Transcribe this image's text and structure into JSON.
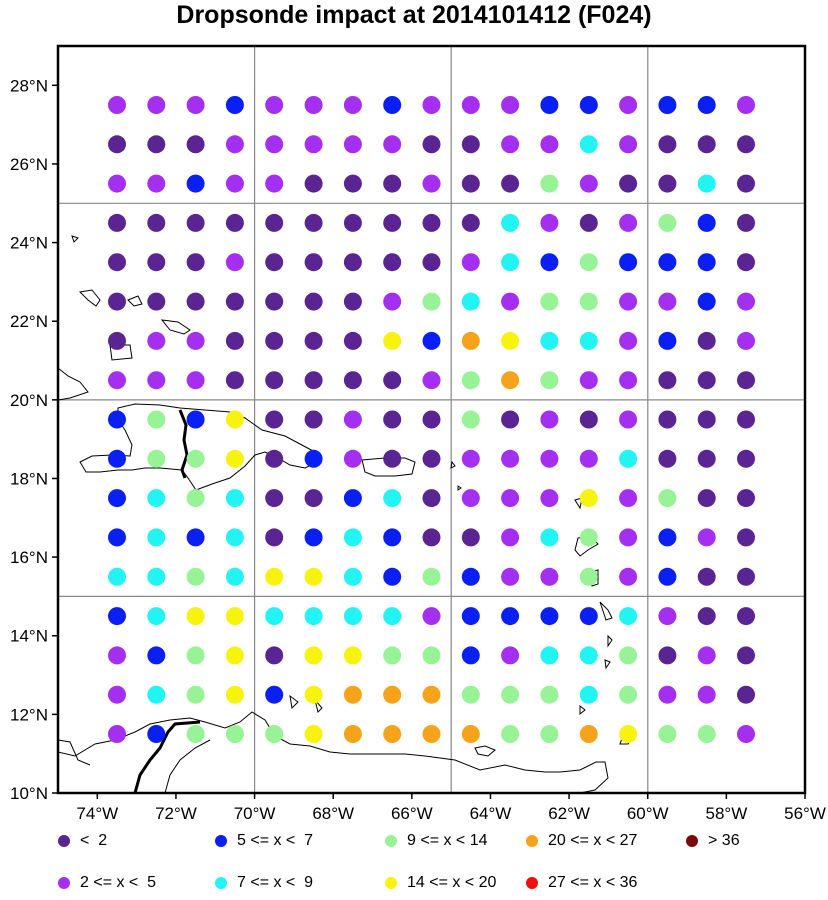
{
  "title": "Dropsonde impact at 2014101412 (F024)",
  "y_ticks": [
    "10°N",
    "12°N",
    "14°N",
    "16°N",
    "18°N",
    "20°N",
    "22°N",
    "24°N",
    "26°N",
    "28°N"
  ],
  "x_ticks": [
    "74°W",
    "72°W",
    "70°W",
    "68°W",
    "66°W",
    "64°W",
    "62°W",
    "60°W",
    "58°W",
    "56°W"
  ],
  "legend": [
    {
      "label": "<  2",
      "color": "#5b2493"
    },
    {
      "label": "2 <= x <  5",
      "color": "#a52ff0"
    },
    {
      "label": "5 <= x <  7",
      "color": "#0a1ff4"
    },
    {
      "label": "7 <= x <  9",
      "color": "#22f4f4"
    },
    {
      "label": "9 <= x < 14",
      "color": "#98f296"
    },
    {
      "label": "14 <= x < 20",
      "color": "#f7f30c"
    },
    {
      "label": "20 <= x < 27",
      "color": "#f5a31a"
    },
    {
      "label": "27 <= x < 36",
      "color": "#f20d0d"
    },
    {
      "label": "> 36",
      "color": "#7a0b0b"
    }
  ],
  "chart_data": {
    "type": "scatter",
    "xlim": [
      -75,
      -56
    ],
    "ylim": [
      10,
      29
    ],
    "lon": [
      -73.5,
      -72.5,
      -71.5,
      -70.5,
      -69.5,
      -68.5,
      -67.5,
      -66.5,
      -65.5,
      -64.5,
      -63.5,
      -62.5,
      -61.5,
      -60.5,
      -59.5,
      -58.5,
      -57.5
    ],
    "lat": [
      27.5,
      26.5,
      25.5,
      24.5,
      23.5,
      22.5,
      21.5,
      20.5,
      19.5,
      18.5,
      17.5,
      16.5,
      15.5,
      14.5,
      13.5,
      12.5,
      11.5
    ],
    "category_rows": [
      "11121112111221221",
      "00011111001131000",
      "11211000100410030",
      "00000000003101420",
      "00010000013242220",
      "00000001431441121",
      "01100005265331201",
      "11100000146411000",
      "24250010040101000",
      "24450210011113000",
      "23430023011151400",
      "23230232001341210",
      "33435532421141200",
      "23553333122223100",
      "12450554421334010",
      "13452566644434110",
      "12444566664465441"
    ]
  }
}
